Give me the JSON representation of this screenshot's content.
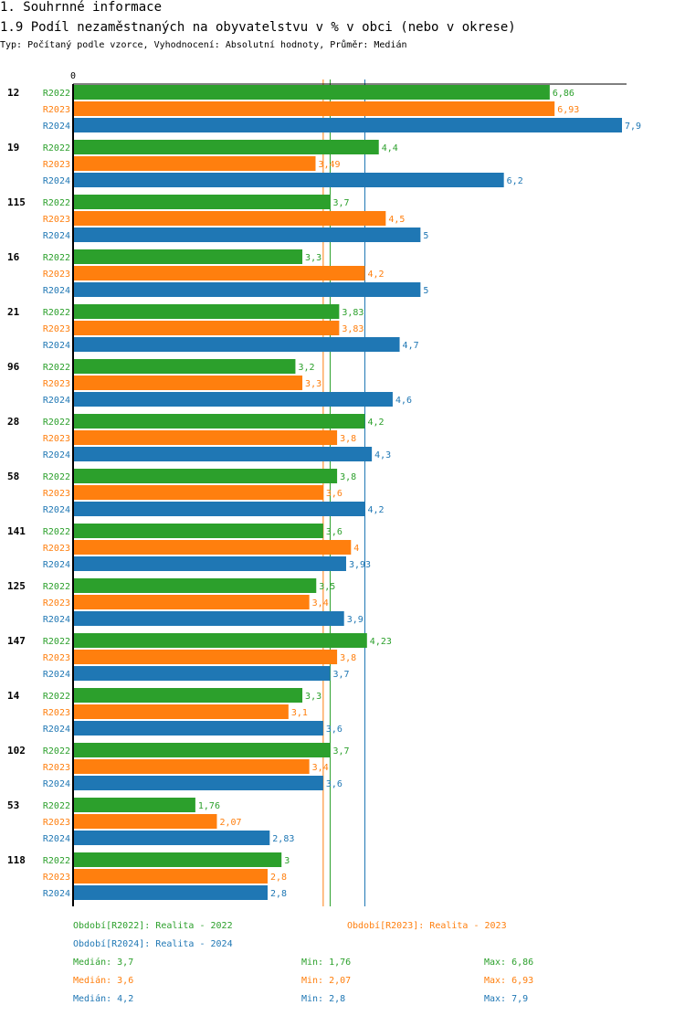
{
  "header": {
    "section": "1. Souhrnné informace",
    "title": "1.9 Podíl nezaměstnaných na obyvatelstvu v % v obci (nebo v okrese)",
    "subtitle": "Typ: Počítaný podle vzorce, Vyhodnocení: Absolutní hodnoty, Průměr: Medián"
  },
  "chart_data": {
    "type": "bar",
    "orientation": "horizontal",
    "x_tick": "0",
    "xlim": [
      0,
      7.9
    ],
    "categories": [
      "12",
      "19",
      "115",
      "16",
      "21",
      "96",
      "28",
      "58",
      "141",
      "125",
      "147",
      "14",
      "102",
      "53",
      "118"
    ],
    "series": [
      {
        "name": "R2022",
        "color": "#2ca02c",
        "values": [
          6.86,
          4.4,
          3.7,
          3.3,
          3.83,
          3.2,
          4.2,
          3.8,
          3.6,
          3.5,
          4.23,
          3.3,
          3.7,
          1.76,
          3
        ]
      },
      {
        "name": "R2023",
        "color": "#ff7f0e",
        "values": [
          6.93,
          3.49,
          4.5,
          4.2,
          3.83,
          3.3,
          3.8,
          3.6,
          4,
          3.4,
          3.8,
          3.1,
          3.4,
          2.07,
          2.8
        ]
      },
      {
        "name": "R2024",
        "color": "#1f77b4",
        "values": [
          7.9,
          6.2,
          5,
          5,
          4.7,
          4.6,
          4.3,
          4.2,
          3.93,
          3.9,
          3.7,
          3.6,
          3.6,
          2.83,
          2.8
        ]
      }
    ],
    "medians": [
      3.7,
      3.6,
      4.2
    ]
  },
  "legend": {
    "r2022": "Období[R2022]: Realita - 2022",
    "r2023": "Období[R2023]: Realita - 2023",
    "r2024": "Období[R2024]: Realita - 2024",
    "stats": [
      {
        "median": "Medián: 3,7",
        "min": "Min: 1,76",
        "max": "Max: 6,86"
      },
      {
        "median": "Medián: 3,6",
        "min": "Min: 2,07",
        "max": "Max: 6,93"
      },
      {
        "median": "Medián: 4,2",
        "min": "Min: 2,8",
        "max": "Max: 7,9"
      }
    ]
  }
}
